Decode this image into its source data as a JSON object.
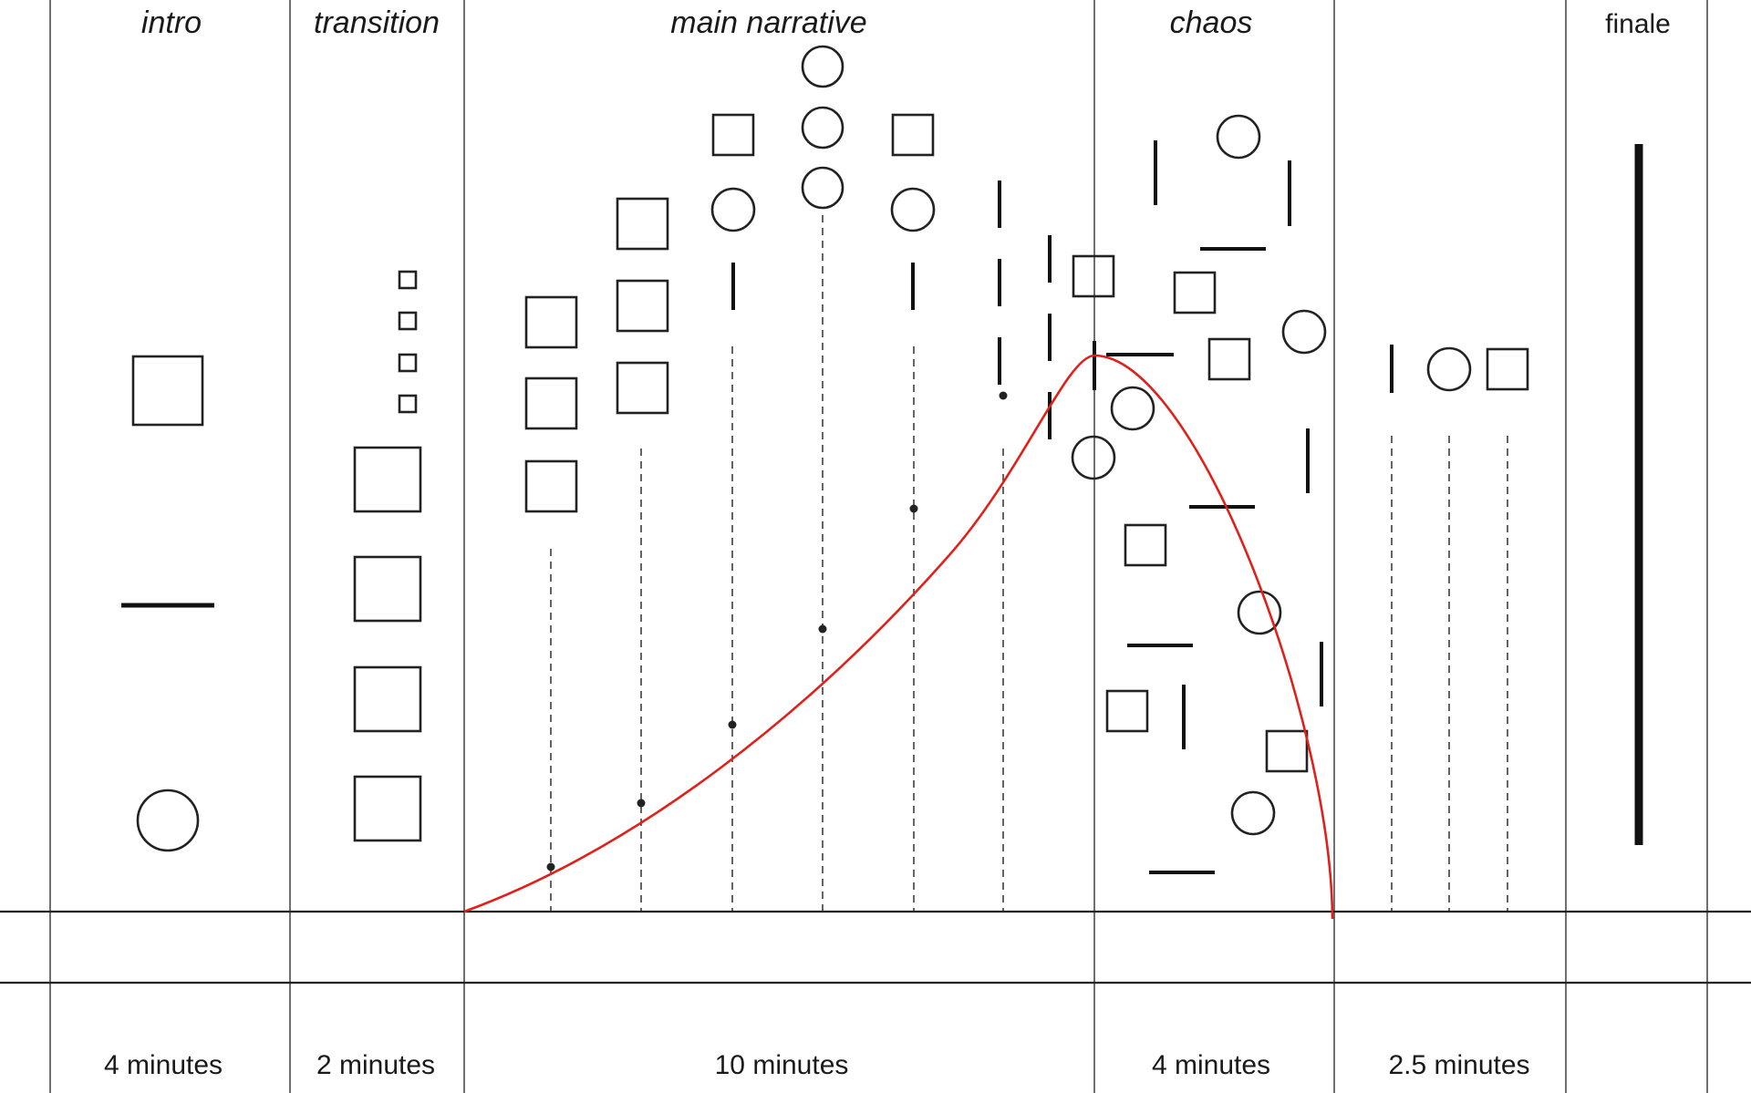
{
  "sections": [
    {
      "id": "intro",
      "label": "intro",
      "italic": true,
      "duration": "4 minutes"
    },
    {
      "id": "transition",
      "label": "transition",
      "italic": true,
      "duration": "2 minutes"
    },
    {
      "id": "main-narrative",
      "label": "main narrative",
      "italic": true,
      "duration": "10 minutes"
    },
    {
      "id": "chaos",
      "label": "chaos",
      "italic": true,
      "duration": "4 minutes"
    },
    {
      "id": "unlabeled",
      "label": "",
      "italic": false,
      "duration": "2.5 minutes"
    },
    {
      "id": "finale",
      "label": "finale",
      "italic": false,
      "duration": ""
    }
  ],
  "colors": {
    "ink": "#222222",
    "curve": "#e0201b",
    "background": "#ffffff"
  }
}
